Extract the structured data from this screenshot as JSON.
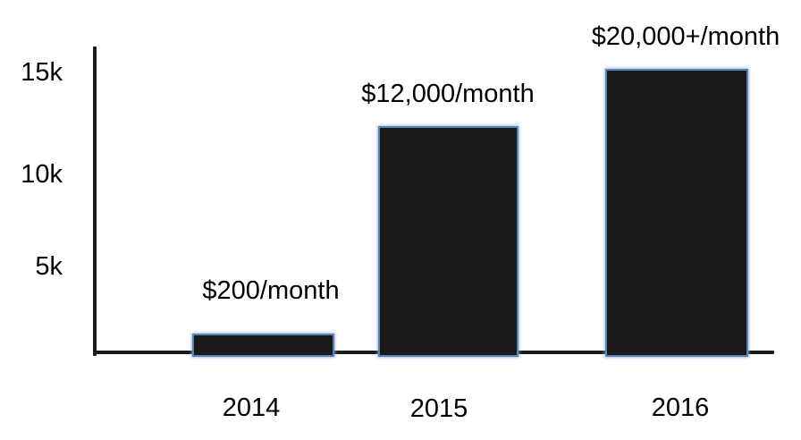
{
  "chart_data": {
    "type": "bar",
    "title": "",
    "xlabel": "",
    "ylabel": "",
    "categories": [
      "2014",
      "2015",
      "2016"
    ],
    "values": [
      200,
      12000,
      20000
    ],
    "value_labels": [
      "$200/month",
      "$12,000/month",
      "$20,000+/month"
    ],
    "drawn_bar_heights_estimate": [
      1400,
      12200,
      15300
    ],
    "y_tick_labels": [
      "15k",
      "10k",
      "5k"
    ],
    "y_tick_values": [
      15000,
      10000,
      5000
    ],
    "ylim": [
      0,
      16500
    ],
    "grid": false,
    "legend": false,
    "colors": {
      "bar_fill": "#1b1a19",
      "bar_border": "#5b82b4",
      "axis": "#1c1c1c",
      "text": "#000000",
      "background": "#ffffff"
    }
  }
}
